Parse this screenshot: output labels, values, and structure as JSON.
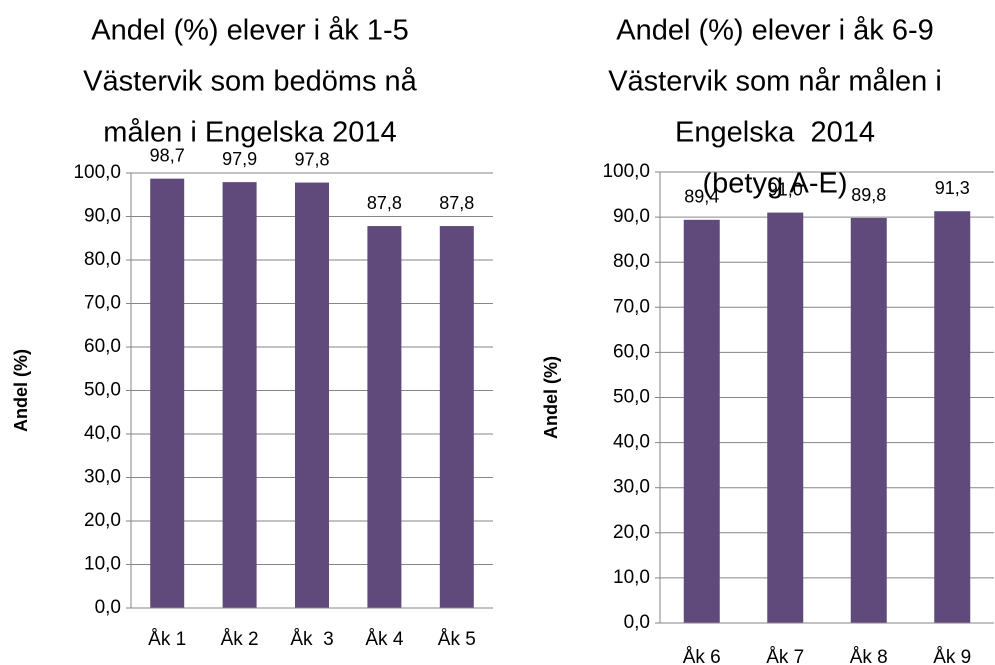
{
  "chart_data": [
    {
      "type": "bar",
      "title": [
        "Andel (%) elever i åk 1-5",
        "Västervik som bedöms nå",
        "målen i Engelska 2014"
      ],
      "y_label": "Andel (%)",
      "categories": [
        "Åk 1",
        "Åk 2",
        "Åk  3",
        "Åk 4",
        "Åk 5"
      ],
      "values": [
        98.7,
        97.9,
        97.8,
        87.8,
        87.8
      ],
      "value_labels": [
        "98,7",
        "97,9",
        "97,8",
        "87,8",
        "87,8"
      ],
      "color": "#604a7b",
      "ylim": [
        0,
        100
      ],
      "yticks": [
        {
          "value": 0,
          "label": "0,0"
        },
        {
          "value": 10,
          "label": "10,0"
        },
        {
          "value": 20,
          "label": "20,0"
        },
        {
          "value": 30,
          "label": "30,0"
        },
        {
          "value": 40,
          "label": "40,0"
        },
        {
          "value": 50,
          "label": "50,0"
        },
        {
          "value": 60,
          "label": "60,0"
        },
        {
          "value": 70,
          "label": "70,0"
        },
        {
          "value": 80,
          "label": "80,0"
        },
        {
          "value": 90,
          "label": "90,0"
        },
        {
          "value": 100,
          "label": "100,0"
        }
      ],
      "grid": true
    },
    {
      "type": "bar",
      "title": [
        "Andel (%) elever i åk 6-9",
        "Västervik som når målen i",
        "Engelska  2014",
        "(betyg A-E)"
      ],
      "y_label": "Andel (%)",
      "categories": [
        "Åk 6",
        "Åk 7",
        "Åk 8",
        "Åk 9"
      ],
      "values": [
        89.4,
        91.0,
        89.8,
        91.3
      ],
      "value_labels": [
        "89,4",
        "91,0",
        "89,8",
        "91,3"
      ],
      "color": "#604a7b",
      "ylim": [
        0,
        100
      ],
      "yticks": [
        {
          "value": 0,
          "label": "0,0"
        },
        {
          "value": 10,
          "label": "10,0"
        },
        {
          "value": 20,
          "label": "20,0"
        },
        {
          "value": 30,
          "label": "30,0"
        },
        {
          "value": 40,
          "label": "40,0"
        },
        {
          "value": 50,
          "label": "50,0"
        },
        {
          "value": 60,
          "label": "60,0"
        },
        {
          "value": 70,
          "label": "70,0"
        },
        {
          "value": 80,
          "label": "80,0"
        },
        {
          "value": 90,
          "label": "90,0"
        },
        {
          "value": 100,
          "label": "100,0"
        }
      ],
      "grid": true
    }
  ]
}
